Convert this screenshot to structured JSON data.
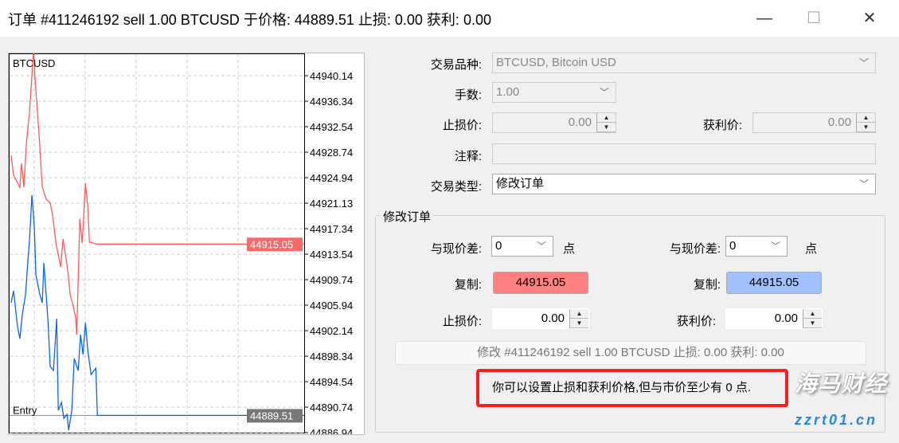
{
  "window": {
    "title": "订单 #411246192 sell 1.00 BTCUSD 于价格: 44889.51 止损: 0.00 获利: 0.00",
    "minimize_icon": "minimize-icon",
    "maximize_icon": "maximize-icon",
    "close_icon": "close-icon"
  },
  "chart_data": {
    "type": "line",
    "symbol": "BTCUSD",
    "entry_label": "Entry",
    "y_ticks": [
      "44940.14",
      "44936.34",
      "44932.54",
      "44928.74",
      "44924.94",
      "44921.13",
      "44917.34",
      "44913.54",
      "44909.74",
      "44905.94",
      "44902.14",
      "44898.34",
      "44894.54",
      "44890.74",
      "44886.94"
    ],
    "ylim": [
      44886.2,
      44943.3
    ],
    "grid": true,
    "ask_label": "44915.05",
    "bid_label": "44889.51",
    "colors": {
      "ask": "#ff5a5a",
      "bid": "#0a64f0",
      "entry": "#888888"
    },
    "ask": {
      "t": [
        0,
        3,
        11,
        13,
        16,
        19,
        23,
        26,
        28,
        30,
        35,
        39,
        44,
        49,
        52,
        56,
        62,
        65,
        71,
        74,
        78,
        81,
        82,
        83,
        86,
        89,
        93,
        96,
        98,
        100,
        106,
        367
      ],
      "price": [
        44928.27,
        44925.3,
        44923.52,
        44927.08,
        44923.52,
        44930.05,
        44934.8,
        44940.14,
        44944.06,
        44939.55,
        44931.23,
        44923.52,
        44921.73,
        44921.14,
        44919.36,
        44915.2,
        44911.64,
        44915.8,
        44911.05,
        44907.48,
        44905.7,
        44903.92,
        44901.55,
        44905.11,
        44918.77,
        44915.2,
        44924.11,
        44920.55,
        44915.32,
        44915.32,
        44915.05,
        44915.05
      ]
    },
    "bid": {
      "t": [
        0,
        3,
        8,
        11,
        14,
        18,
        23,
        26,
        29,
        31,
        36,
        39,
        41,
        46,
        49,
        53,
        57,
        59,
        63,
        66,
        70,
        72,
        76,
        79,
        84,
        87,
        90,
        93,
        96,
        100,
        106,
        108,
        367
      ],
      "price": [
        44906.3,
        44908.08,
        44902.73,
        44900.95,
        44904.52,
        44907.48,
        44915.8,
        44922.33,
        44917.58,
        44910.45,
        44907.48,
        44906.3,
        44912.23,
        44903.92,
        44896.8,
        44896.2,
        44903.92,
        44890.27,
        44891.45,
        44889.08,
        44889.67,
        44887.3,
        44890.27,
        44897.98,
        44896.2,
        44901.55,
        44898.58,
        44903.33,
        44899.17,
        44895.61,
        44896.55,
        44889.51,
        44889.51
      ]
    },
    "entry": 44889.51
  },
  "form": {
    "symbol_label": "交易品种:",
    "symbol_value": "BTCUSD, Bitcoin USD",
    "volume_label": "手数:",
    "volume_value": "1.00",
    "sl_label": "止损价:",
    "sl_value": "0.00",
    "tp_label": "获利价:",
    "tp_value": "0.00",
    "comment_label": "注释:",
    "comment_value": "",
    "type_label": "交易类型:",
    "type_value": "修改订单"
  },
  "modify": {
    "group_title": "修改订单",
    "diff_label": "与现价差:",
    "sl_diff": "0",
    "tp_diff": "0",
    "points": "点",
    "copy_label": "复制:",
    "sl_copy": "44915.05",
    "tp_copy": "44915.05",
    "sl_label": "止损价:",
    "sl_value": "0.00",
    "tp_label": "获利价:",
    "tp_value": "0.00",
    "button": "修改 #411246192 sell 1.00 BTCUSD 止损: 0.00 获利: 0.00",
    "note": "你可以设置止损和获利价格,但与市价至少有 0 点."
  },
  "watermark": {
    "name": "海马财经",
    "url": "zzrt01.cn"
  },
  "colors": {
    "sl_copy_bg": "#ff8080",
    "tp_copy_bg": "#a0c0ff",
    "note_border": "#f41f1f"
  }
}
